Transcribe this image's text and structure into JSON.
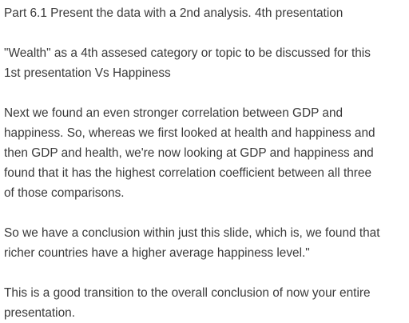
{
  "document": {
    "heading": "Part 6.1 Present the data with a 2nd analysis. 4th presentation",
    "paragraphs": [
      {
        "lines": [
          "\"Wealth\" as a 4th assesed category or topic to be discussed for this",
          "1st presentation Vs Happiness"
        ]
      },
      {
        "lines": [
          "Next we found an even stronger correlation between GDP and",
          "happiness. So, whereas we first looked at health and happiness and",
          "then GDP and health, we're now looking at GDP and happiness and",
          "found that it has the highest correlation coefficient between all three",
          "of those comparisons."
        ]
      },
      {
        "lines": [
          "So we have a conclusion within just this slide, which is, we found that",
          "richer countries have a higher average happiness level.\""
        ]
      },
      {
        "lines": [
          "This is a good transition to the overall conclusion of now your entire",
          "presentation."
        ]
      }
    ]
  }
}
